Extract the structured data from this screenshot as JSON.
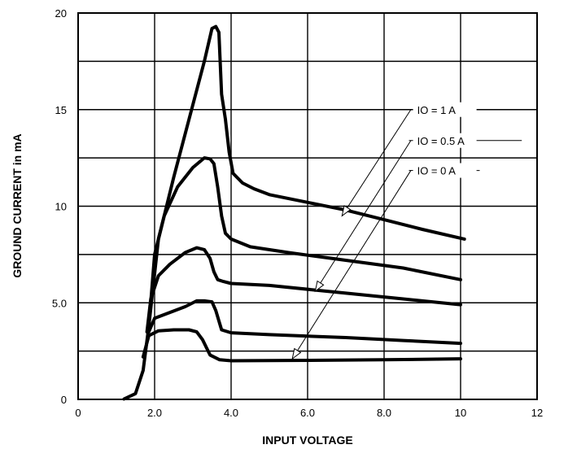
{
  "chart_data": {
    "type": "line",
    "title": "",
    "xlabel": "INPUT VOLTAGE",
    "ylabel": "GROUND CURRENT in mA",
    "xlim": [
      0,
      12
    ],
    "ylim": [
      0,
      20
    ],
    "grid": true,
    "x_ticks": [
      {
        "value": 0,
        "label": "0"
      },
      {
        "value": 2,
        "label": "2.0"
      },
      {
        "value": 4,
        "label": "4.0"
      },
      {
        "value": 6,
        "label": "6.0"
      },
      {
        "value": 8,
        "label": "8.0"
      },
      {
        "value": 10,
        "label": "10"
      },
      {
        "value": 12,
        "label": "12"
      }
    ],
    "y_ticks": [
      {
        "value": 0,
        "label": "0"
      },
      {
        "value": 5,
        "label": "5.0"
      },
      {
        "value": 10,
        "label": "10"
      },
      {
        "value": 15,
        "label": "15"
      },
      {
        "value": 20,
        "label": "20"
      }
    ],
    "y_gridlines": [
      2.5,
      5,
      7.5,
      10,
      12.5,
      15,
      17.5
    ],
    "x_gridlines": [
      2,
      4,
      6,
      8,
      10
    ],
    "series": [
      {
        "points": [
          [
            1.2,
            0.02
          ],
          [
            1.5,
            0.3
          ],
          [
            1.7,
            1.5
          ],
          [
            1.85,
            3.8
          ],
          [
            2.0,
            7.5
          ],
          [
            2.25,
            9.5
          ],
          [
            2.6,
            11
          ],
          [
            3.0,
            12
          ],
          [
            3.3,
            12.5
          ],
          [
            3.45,
            12.45
          ],
          [
            3.55,
            12.2
          ],
          [
            3.65,
            11
          ],
          [
            3.75,
            9.5
          ],
          [
            3.85,
            8.6
          ],
          [
            4.0,
            8.3
          ],
          [
            4.5,
            7.9
          ],
          [
            5.5,
            7.6
          ],
          [
            7.0,
            7.2
          ],
          [
            8.5,
            6.8
          ],
          [
            10.0,
            6.2
          ]
        ]
      },
      {
        "points": [
          [
            1.8,
            3.5
          ],
          [
            1.9,
            5.2
          ],
          [
            2.1,
            6.4
          ],
          [
            2.4,
            7.0
          ],
          [
            2.8,
            7.6
          ],
          [
            3.1,
            7.85
          ],
          [
            3.3,
            7.75
          ],
          [
            3.45,
            7.3
          ],
          [
            3.55,
            6.6
          ],
          [
            3.65,
            6.2
          ],
          [
            3.8,
            6.1
          ],
          [
            4.0,
            6.0
          ],
          [
            5.0,
            5.9
          ],
          [
            7.0,
            5.5
          ],
          [
            8.5,
            5.2
          ],
          [
            10.0,
            4.9
          ]
        ]
      },
      {
        "points": [
          [
            1.85,
            3.5
          ],
          [
            2.0,
            4.2
          ],
          [
            2.4,
            4.5
          ],
          [
            2.8,
            4.8
          ],
          [
            3.1,
            5.1
          ],
          [
            3.3,
            5.1
          ],
          [
            3.5,
            5.05
          ],
          [
            3.6,
            4.6
          ],
          [
            3.75,
            3.6
          ],
          [
            4.0,
            3.45
          ],
          [
            5.0,
            3.35
          ],
          [
            7.0,
            3.2
          ],
          [
            8.5,
            3.05
          ],
          [
            10.0,
            2.9
          ]
        ]
      },
      {
        "points": [
          [
            1.7,
            2.2
          ],
          [
            1.85,
            3.3
          ],
          [
            2.1,
            3.55
          ],
          [
            2.5,
            3.6
          ],
          [
            2.9,
            3.6
          ],
          [
            3.1,
            3.5
          ],
          [
            3.25,
            3.1
          ],
          [
            3.45,
            2.3
          ],
          [
            3.7,
            2.05
          ],
          [
            4.0,
            2.0
          ],
          [
            6.0,
            2.02
          ],
          [
            8.0,
            2.05
          ],
          [
            10.0,
            2.1
          ]
        ]
      },
      {
        "points": [
          [
            1.85,
            3.8
          ],
          [
            2.1,
            8.3
          ],
          [
            2.5,
            11.5
          ],
          [
            2.9,
            14.5
          ],
          [
            3.3,
            17.5
          ],
          [
            3.5,
            19.2
          ],
          [
            3.6,
            19.3
          ],
          [
            3.68,
            19.0
          ],
          [
            3.75,
            15.8
          ],
          [
            3.85,
            14.5
          ],
          [
            3.95,
            12.8
          ],
          [
            4.05,
            11.7
          ],
          [
            4.3,
            11.2
          ],
          [
            4.6,
            10.9
          ],
          [
            5.0,
            10.6
          ],
          [
            6.0,
            10.2
          ],
          [
            7.0,
            9.8
          ],
          [
            8.0,
            9.3
          ],
          [
            9.0,
            8.8
          ],
          [
            10.1,
            8.3
          ]
        ]
      }
    ],
    "annotations": [
      {
        "text": "IO = 1 A",
        "text_at": [
          8.8,
          15.0
        ],
        "line_from": [
          8.65,
          15.0
        ],
        "line_to": [
          11.6,
          15.0
        ],
        "arrow_from": [
          8.7,
          15.0
        ],
        "arrow_to": [
          6.9,
          9.5
        ]
      },
      {
        "text": "IO = 0.5 A",
        "text_at": [
          8.8,
          13.4
        ],
        "line_from": [
          8.65,
          13.4
        ],
        "line_to": [
          11.6,
          13.4
        ],
        "arrow_from": [
          8.7,
          13.4
        ],
        "arrow_to": [
          6.2,
          5.6
        ]
      },
      {
        "text": "IO = 0 A",
        "text_at": [
          8.8,
          11.85
        ],
        "line_from": [
          8.65,
          11.85
        ],
        "line_to": [
          10.5,
          11.85
        ],
        "arrow_from": [
          8.7,
          11.85
        ],
        "arrow_to": [
          5.6,
          2.1
        ]
      }
    ]
  }
}
